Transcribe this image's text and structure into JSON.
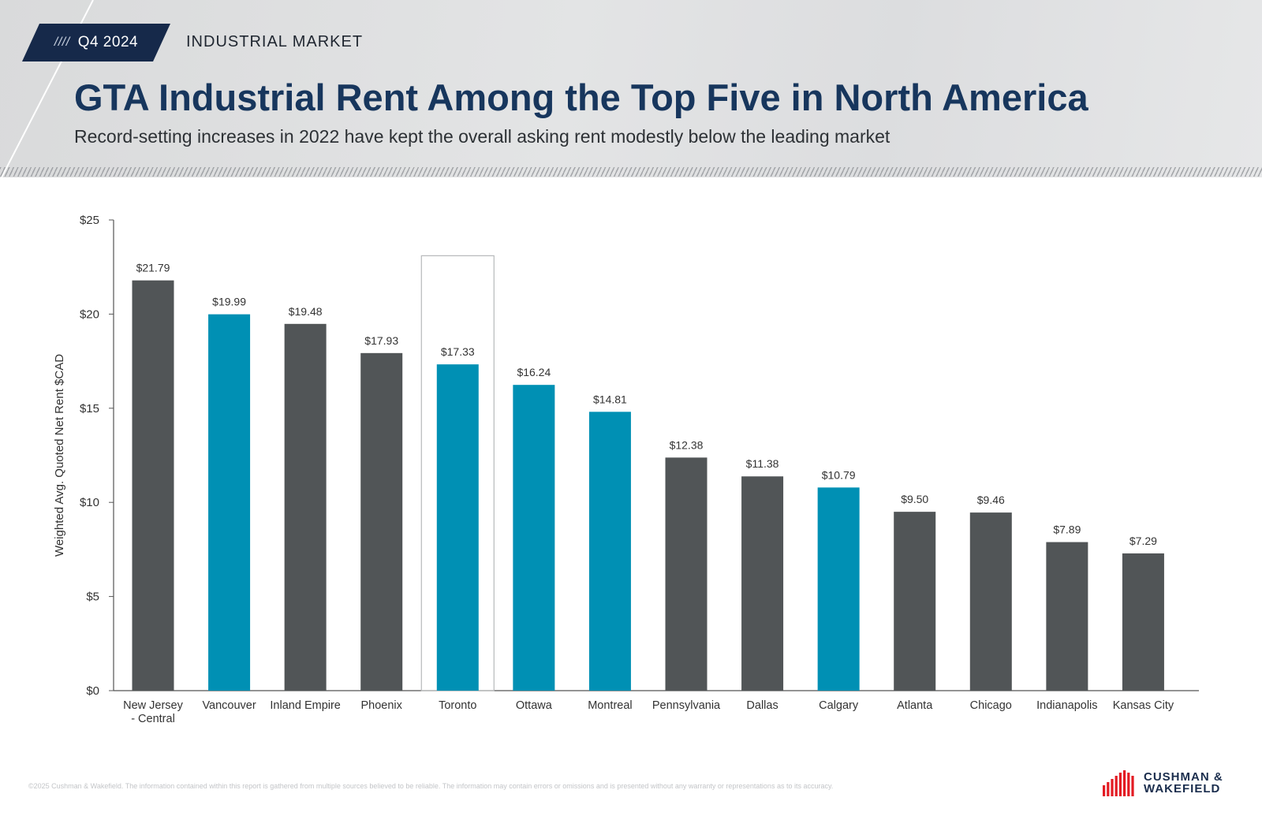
{
  "header": {
    "badge_slashes": "////",
    "badge_label": "Q4 2024",
    "section_label": "INDUSTRIAL MARKET",
    "title": "GTA Industrial Rent Among the Top Five in North America",
    "subtitle": "Record-setting increases in 2022 have kept the overall asking rent modestly below the leading market"
  },
  "chart_data": {
    "type": "bar",
    "categories": [
      "New Jersey - Central",
      "Vancouver",
      "Inland Empire",
      "Phoenix",
      "Toronto",
      "Ottawa",
      "Montreal",
      "Pennsylvania",
      "Dallas",
      "Calgary",
      "Atlanta",
      "Chicago",
      "Indianapolis",
      "Kansas City"
    ],
    "category_lines": [
      [
        "New Jersey",
        "- Central"
      ],
      [
        "Vancouver"
      ],
      [
        "Inland Empire"
      ],
      [
        "Phoenix"
      ],
      [
        "Toronto"
      ],
      [
        "Ottawa"
      ],
      [
        "Montreal"
      ],
      [
        "Pennsylvania"
      ],
      [
        "Dallas"
      ],
      [
        "Calgary"
      ],
      [
        "Atlanta"
      ],
      [
        "Chicago"
      ],
      [
        "Indianapolis"
      ],
      [
        "Kansas City"
      ]
    ],
    "values": [
      21.79,
      19.99,
      19.48,
      17.93,
      17.33,
      16.24,
      14.81,
      12.38,
      11.38,
      10.79,
      9.5,
      9.46,
      7.89,
      7.29
    ],
    "value_labels": [
      "$21.79",
      "$19.99",
      "$19.48",
      "$17.93",
      "$17.33",
      "$16.24",
      "$14.81",
      "$12.38",
      "$11.38",
      "$10.79",
      "$9.50",
      "$9.46",
      "$7.89",
      "$7.29"
    ],
    "is_canadian": [
      false,
      true,
      false,
      false,
      true,
      true,
      true,
      false,
      false,
      true,
      false,
      false,
      false,
      false
    ],
    "highlight": "Toronto",
    "ylabel": "Weighted Avg. Quoted Net Rent $CAD",
    "ylim": [
      0,
      25
    ],
    "yticks": [
      0,
      5,
      10,
      15,
      20,
      25
    ],
    "ytick_labels": [
      "$0",
      "$5",
      "$10",
      "$15",
      "$20",
      "$25"
    ],
    "colors": {
      "canadian": "#0090b4",
      "us": "#515557",
      "axis": "#555555",
      "label": "#333333"
    },
    "grid": false
  },
  "footer": {
    "disclaimer": "©2025 Cushman & Wakefield. The information contained within this report is gathered from multiple sources believed to be reliable. The information may contain errors or omissions and is presented without any warranty or representations as to its accuracy.",
    "logo_line1": "CUSHMAN &",
    "logo_line2": "WAKEFIELD",
    "logo_color": "#e31b23"
  }
}
